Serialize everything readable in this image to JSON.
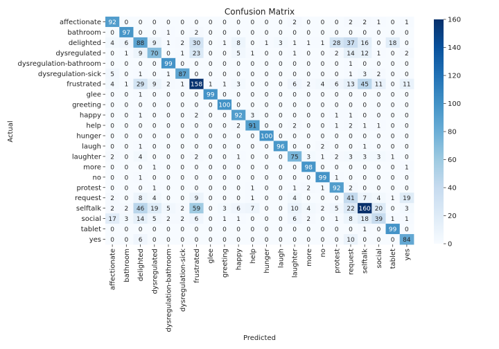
{
  "chart_data": {
    "type": "heatmap",
    "title": "Confusion Matrix",
    "xlabel": "Predicted",
    "ylabel": "Actual",
    "colormap": "Blues",
    "vmin": 0,
    "vmax": 160,
    "colorbar_ticks": [
      "0",
      "20",
      "40",
      "60",
      "80",
      "100",
      "120",
      "140",
      "160"
    ],
    "labels": [
      "affectionate",
      "bathroom",
      "delighted",
      "dysregulated",
      "dysregulation-bathroom",
      "dysregulation-sick",
      "frustrated",
      "glee",
      "greeting",
      "happy",
      "help",
      "hunger",
      "laugh",
      "laughter",
      "more",
      "no",
      "protest",
      "request",
      "selftalk",
      "social",
      "tablet",
      "yes"
    ],
    "matrix": [
      [
        92,
        0,
        0,
        0,
        0,
        0,
        0,
        0,
        0,
        0,
        0,
        0,
        0,
        2,
        0,
        0,
        0,
        2,
        2,
        1,
        0,
        1
      ],
      [
        0,
        97,
        0,
        0,
        1,
        0,
        2,
        0,
        0,
        0,
        0,
        0,
        0,
        0,
        0,
        0,
        0,
        0,
        0,
        0,
        0,
        0
      ],
      [
        4,
        6,
        88,
        9,
        1,
        2,
        30,
        0,
        1,
        8,
        0,
        1,
        3,
        1,
        1,
        1,
        28,
        37,
        16,
        0,
        18,
        0
      ],
      [
        0,
        1,
        9,
        70,
        0,
        1,
        23,
        0,
        0,
        5,
        1,
        0,
        0,
        1,
        0,
        0,
        2,
        14,
        12,
        1,
        0,
        2
      ],
      [
        0,
        0,
        0,
        0,
        99,
        0,
        0,
        0,
        0,
        0,
        0,
        0,
        0,
        0,
        0,
        0,
        0,
        1,
        0,
        0,
        0,
        0
      ],
      [
        5,
        0,
        1,
        0,
        1,
        87,
        0,
        0,
        0,
        0,
        0,
        0,
        0,
        0,
        0,
        0,
        0,
        1,
        3,
        2,
        0,
        0
      ],
      [
        4,
        1,
        29,
        9,
        2,
        1,
        158,
        1,
        1,
        3,
        0,
        0,
        0,
        6,
        2,
        4,
        6,
        13,
        45,
        11,
        0,
        11
      ],
      [
        0,
        0,
        1,
        0,
        0,
        0,
        0,
        99,
        0,
        0,
        0,
        0,
        0,
        0,
        0,
        0,
        0,
        0,
        0,
        0,
        0,
        0
      ],
      [
        0,
        0,
        0,
        0,
        0,
        0,
        0,
        0,
        100,
        0,
        0,
        0,
        0,
        0,
        0,
        0,
        0,
        0,
        0,
        0,
        0,
        0
      ],
      [
        0,
        0,
        1,
        0,
        0,
        0,
        2,
        0,
        0,
        92,
        3,
        0,
        0,
        0,
        0,
        0,
        1,
        1,
        0,
        0,
        0,
        0
      ],
      [
        0,
        0,
        0,
        0,
        0,
        0,
        0,
        0,
        0,
        2,
        91,
        0,
        0,
        2,
        0,
        0,
        1,
        2,
        1,
        1,
        0,
        0
      ],
      [
        0,
        0,
        0,
        0,
        0,
        0,
        0,
        0,
        0,
        0,
        0,
        100,
        0,
        0,
        0,
        0,
        0,
        0,
        0,
        0,
        0,
        0
      ],
      [
        0,
        0,
        1,
        0,
        0,
        0,
        0,
        0,
        0,
        0,
        0,
        0,
        96,
        0,
        0,
        2,
        0,
        0,
        1,
        0,
        0,
        0
      ],
      [
        2,
        0,
        4,
        0,
        0,
        0,
        2,
        0,
        0,
        1,
        0,
        0,
        0,
        75,
        3,
        1,
        2,
        3,
        3,
        3,
        1,
        0
      ],
      [
        0,
        0,
        0,
        1,
        0,
        0,
        0,
        0,
        0,
        0,
        0,
        0,
        0,
        0,
        98,
        0,
        0,
        0,
        0,
        0,
        0,
        1
      ],
      [
        0,
        0,
        1,
        0,
        0,
        0,
        0,
        0,
        0,
        0,
        0,
        0,
        0,
        0,
        0,
        99,
        1,
        0,
        0,
        0,
        0,
        0
      ],
      [
        0,
        0,
        0,
        1,
        0,
        0,
        0,
        0,
        0,
        0,
        1,
        0,
        0,
        1,
        2,
        1,
        92,
        2,
        0,
        0,
        0,
        0
      ],
      [
        2,
        0,
        8,
        4,
        0,
        0,
        9,
        0,
        0,
        0,
        1,
        0,
        0,
        4,
        0,
        0,
        0,
        41,
        7,
        4,
        1,
        19
      ],
      [
        2,
        2,
        46,
        19,
        5,
        2,
        59,
        0,
        3,
        6,
        7,
        0,
        0,
        10,
        4,
        2,
        5,
        22,
        160,
        20,
        0,
        3
      ],
      [
        17,
        3,
        14,
        5,
        2,
        2,
        6,
        0,
        1,
        1,
        0,
        0,
        0,
        6,
        2,
        0,
        1,
        8,
        18,
        39,
        1,
        1
      ],
      [
        0,
        0,
        0,
        0,
        0,
        0,
        0,
        0,
        0,
        0,
        0,
        0,
        0,
        0,
        0,
        0,
        0,
        0,
        1,
        0,
        99,
        0
      ],
      [
        0,
        0,
        6,
        0,
        0,
        0,
        0,
        0,
        0,
        0,
        0,
        0,
        0,
        0,
        0,
        0,
        0,
        10,
        0,
        0,
        0,
        84
      ]
    ]
  }
}
